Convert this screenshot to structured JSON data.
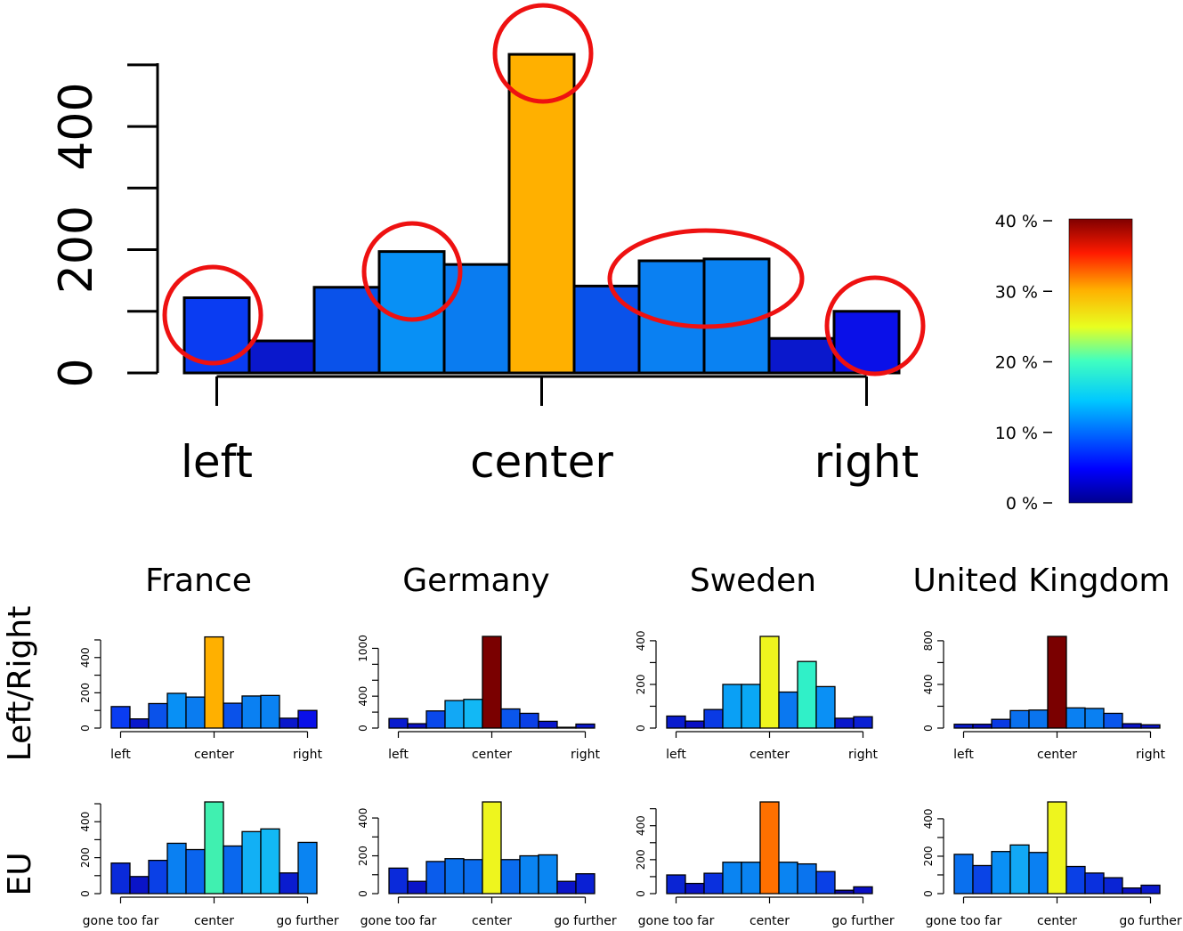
{
  "chart_data": [
    {
      "type": "bar",
      "categories": [
        "1",
        "2",
        "3",
        "4",
        "5",
        "6",
        "7",
        "8",
        "9",
        "10",
        "11"
      ],
      "values": [
        122,
        52,
        139,
        197,
        176,
        517,
        141,
        182,
        185,
        56,
        100
      ],
      "colors": [
        "#0a3cf2",
        "#0a18cc",
        "#0a52ea",
        "#0890f5",
        "#0a7cf0",
        "#ffb000",
        "#0a52ea",
        "#0a80f2",
        "#0a82f2",
        "#0a18cc",
        "#0a10e8"
      ],
      "ylim": [
        0,
        520
      ],
      "yticks": [
        "0",
        "200",
        "400"
      ],
      "xtick_labels": [
        "left",
        "center",
        "right"
      ],
      "highlighted_bars": [
        "1",
        "4",
        "6",
        "8",
        "9",
        "11"
      ],
      "annotation_color": "#ee1111"
    },
    {
      "type": "heatmap",
      "role": "color-scale",
      "ticks": [
        "0 %",
        "10 %",
        "20 %",
        "30 %",
        "40 %"
      ],
      "range": [
        0,
        40
      ],
      "colormap": "jet"
    },
    {
      "type": "bar",
      "panel": "France / Left-Right",
      "values": [
        122,
        52,
        139,
        197,
        176,
        517,
        141,
        182,
        185,
        56,
        100
      ],
      "ylim": [
        0,
        520
      ],
      "yticks": [
        "0",
        "200",
        "400"
      ],
      "xtick_labels": [
        "left",
        "center",
        "right"
      ],
      "colors": [
        "#0a3cf2",
        "#0a18cc",
        "#0a52ea",
        "#0890f5",
        "#0a7cf0",
        "#ffb000",
        "#0a52ea",
        "#0a80f2",
        "#0a82f2",
        "#0a18cc",
        "#0a10e8"
      ]
    },
    {
      "type": "bar",
      "panel": "Germany / Left-Right",
      "values": [
        120,
        55,
        215,
        345,
        360,
        1150,
        240,
        185,
        85,
        10,
        50
      ],
      "ylim": [
        0,
        1150
      ],
      "yticks": [
        "0",
        "400",
        "1000"
      ],
      "xtick_labels": [
        "left",
        "center",
        "right"
      ],
      "colors": [
        "#0a1ccf",
        "#0a10c4",
        "#0a48ea",
        "#12a8f5",
        "#12b8f5",
        "#7a0000",
        "#0a56ec",
        "#0a40e6",
        "#0a18cc",
        "#0a08a0",
        "#0a18cc"
      ]
    },
    {
      "type": "bar",
      "panel": "Sweden / Left-Right",
      "values": [
        55,
        32,
        85,
        200,
        200,
        420,
        165,
        305,
        190,
        45,
        52
      ],
      "ylim": [
        0,
        420
      ],
      "yticks": [
        "0",
        "200",
        "400"
      ],
      "xtick_labels": [
        "left",
        "center",
        "right"
      ],
      "colors": [
        "#0a1ccf",
        "#0a10c4",
        "#0a3ae4",
        "#0aa0f5",
        "#0aa8f5",
        "#eef51e",
        "#0a78f0",
        "#30f0c8",
        "#0a90f5",
        "#0a18cc",
        "#0a20d4"
      ]
    },
    {
      "type": "bar",
      "panel": "United Kingdom / Left-Right",
      "values": [
        35,
        35,
        80,
        160,
        165,
        840,
        185,
        180,
        135,
        40,
        30
      ],
      "ylim": [
        0,
        840
      ],
      "yticks": [
        "0",
        "400",
        "800"
      ],
      "xtick_labels": [
        "left",
        "center",
        "right"
      ],
      "colors": [
        "#0a1ccf",
        "#0a10c4",
        "#0a3ae4",
        "#0a70ee",
        "#0a74ee",
        "#7a0000",
        "#0a80f2",
        "#0a80f2",
        "#0a56ec",
        "#0a14c8",
        "#0a14c8"
      ]
    },
    {
      "type": "bar",
      "panel": "France / EU",
      "values": [
        170,
        95,
        185,
        280,
        245,
        510,
        265,
        345,
        360,
        115,
        285
      ],
      "ylim": [
        0,
        510
      ],
      "yticks": [
        "0",
        "200",
        "400"
      ],
      "xtick_labels": [
        "gone too far",
        "center",
        "go further"
      ],
      "colors": [
        "#0a2ada",
        "#0a14c8",
        "#0a40e6",
        "#0a80f2",
        "#0a64ee",
        "#40f0b0",
        "#0a68ee",
        "#12b0f5",
        "#12b8f5",
        "#0a1ccf",
        "#0a84f2"
      ]
    },
    {
      "type": "bar",
      "panel": "Germany / EU",
      "values": [
        135,
        65,
        170,
        185,
        180,
        485,
        180,
        200,
        205,
        65,
        105
      ],
      "ylim": [
        0,
        485
      ],
      "yticks": [
        "0",
        "200",
        "400"
      ],
      "xtick_labels": [
        "gone too far",
        "center",
        "go further"
      ],
      "colors": [
        "#0a2ada",
        "#0a14c8",
        "#0a5cec",
        "#0a70ee",
        "#0a6cee",
        "#eef51e",
        "#0a6cee",
        "#0a84f2",
        "#0a86f2",
        "#0a14c8",
        "#0a20d4"
      ]
    },
    {
      "type": "bar",
      "panel": "Sweden / EU",
      "values": [
        110,
        60,
        120,
        185,
        185,
        540,
        185,
        175,
        130,
        20,
        40
      ],
      "ylim": [
        0,
        540
      ],
      "yticks": [
        "0",
        "200",
        "400"
      ],
      "xtick_labels": [
        "gone too far",
        "center",
        "go further"
      ],
      "colors": [
        "#0a24d4",
        "#0a14c8",
        "#0a30de",
        "#0a84f2",
        "#0a84f2",
        "#ff7000",
        "#0a84f2",
        "#0a74ee",
        "#0a40e6",
        "#0a08a0",
        "#0a10c4"
      ]
    },
    {
      "type": "bar",
      "panel": "United Kingdom / EU",
      "values": [
        210,
        150,
        225,
        260,
        220,
        490,
        145,
        110,
        85,
        30,
        45
      ],
      "ylim": [
        0,
        490
      ],
      "yticks": [
        "0",
        "200",
        "400"
      ],
      "xtick_labels": [
        "gone too far",
        "center",
        "go further"
      ],
      "colors": [
        "#0a70ee",
        "#0a44e6",
        "#0a90f5",
        "#12a8f5",
        "#0a80f2",
        "#eef51e",
        "#0a40e6",
        "#0a30de",
        "#0a24d4",
        "#0a10c4",
        "#0a18cc"
      ]
    }
  ],
  "countries": [
    "France",
    "Germany",
    "Sweden",
    "United Kingdom"
  ],
  "rows": [
    "Left/Right",
    "EU"
  ]
}
